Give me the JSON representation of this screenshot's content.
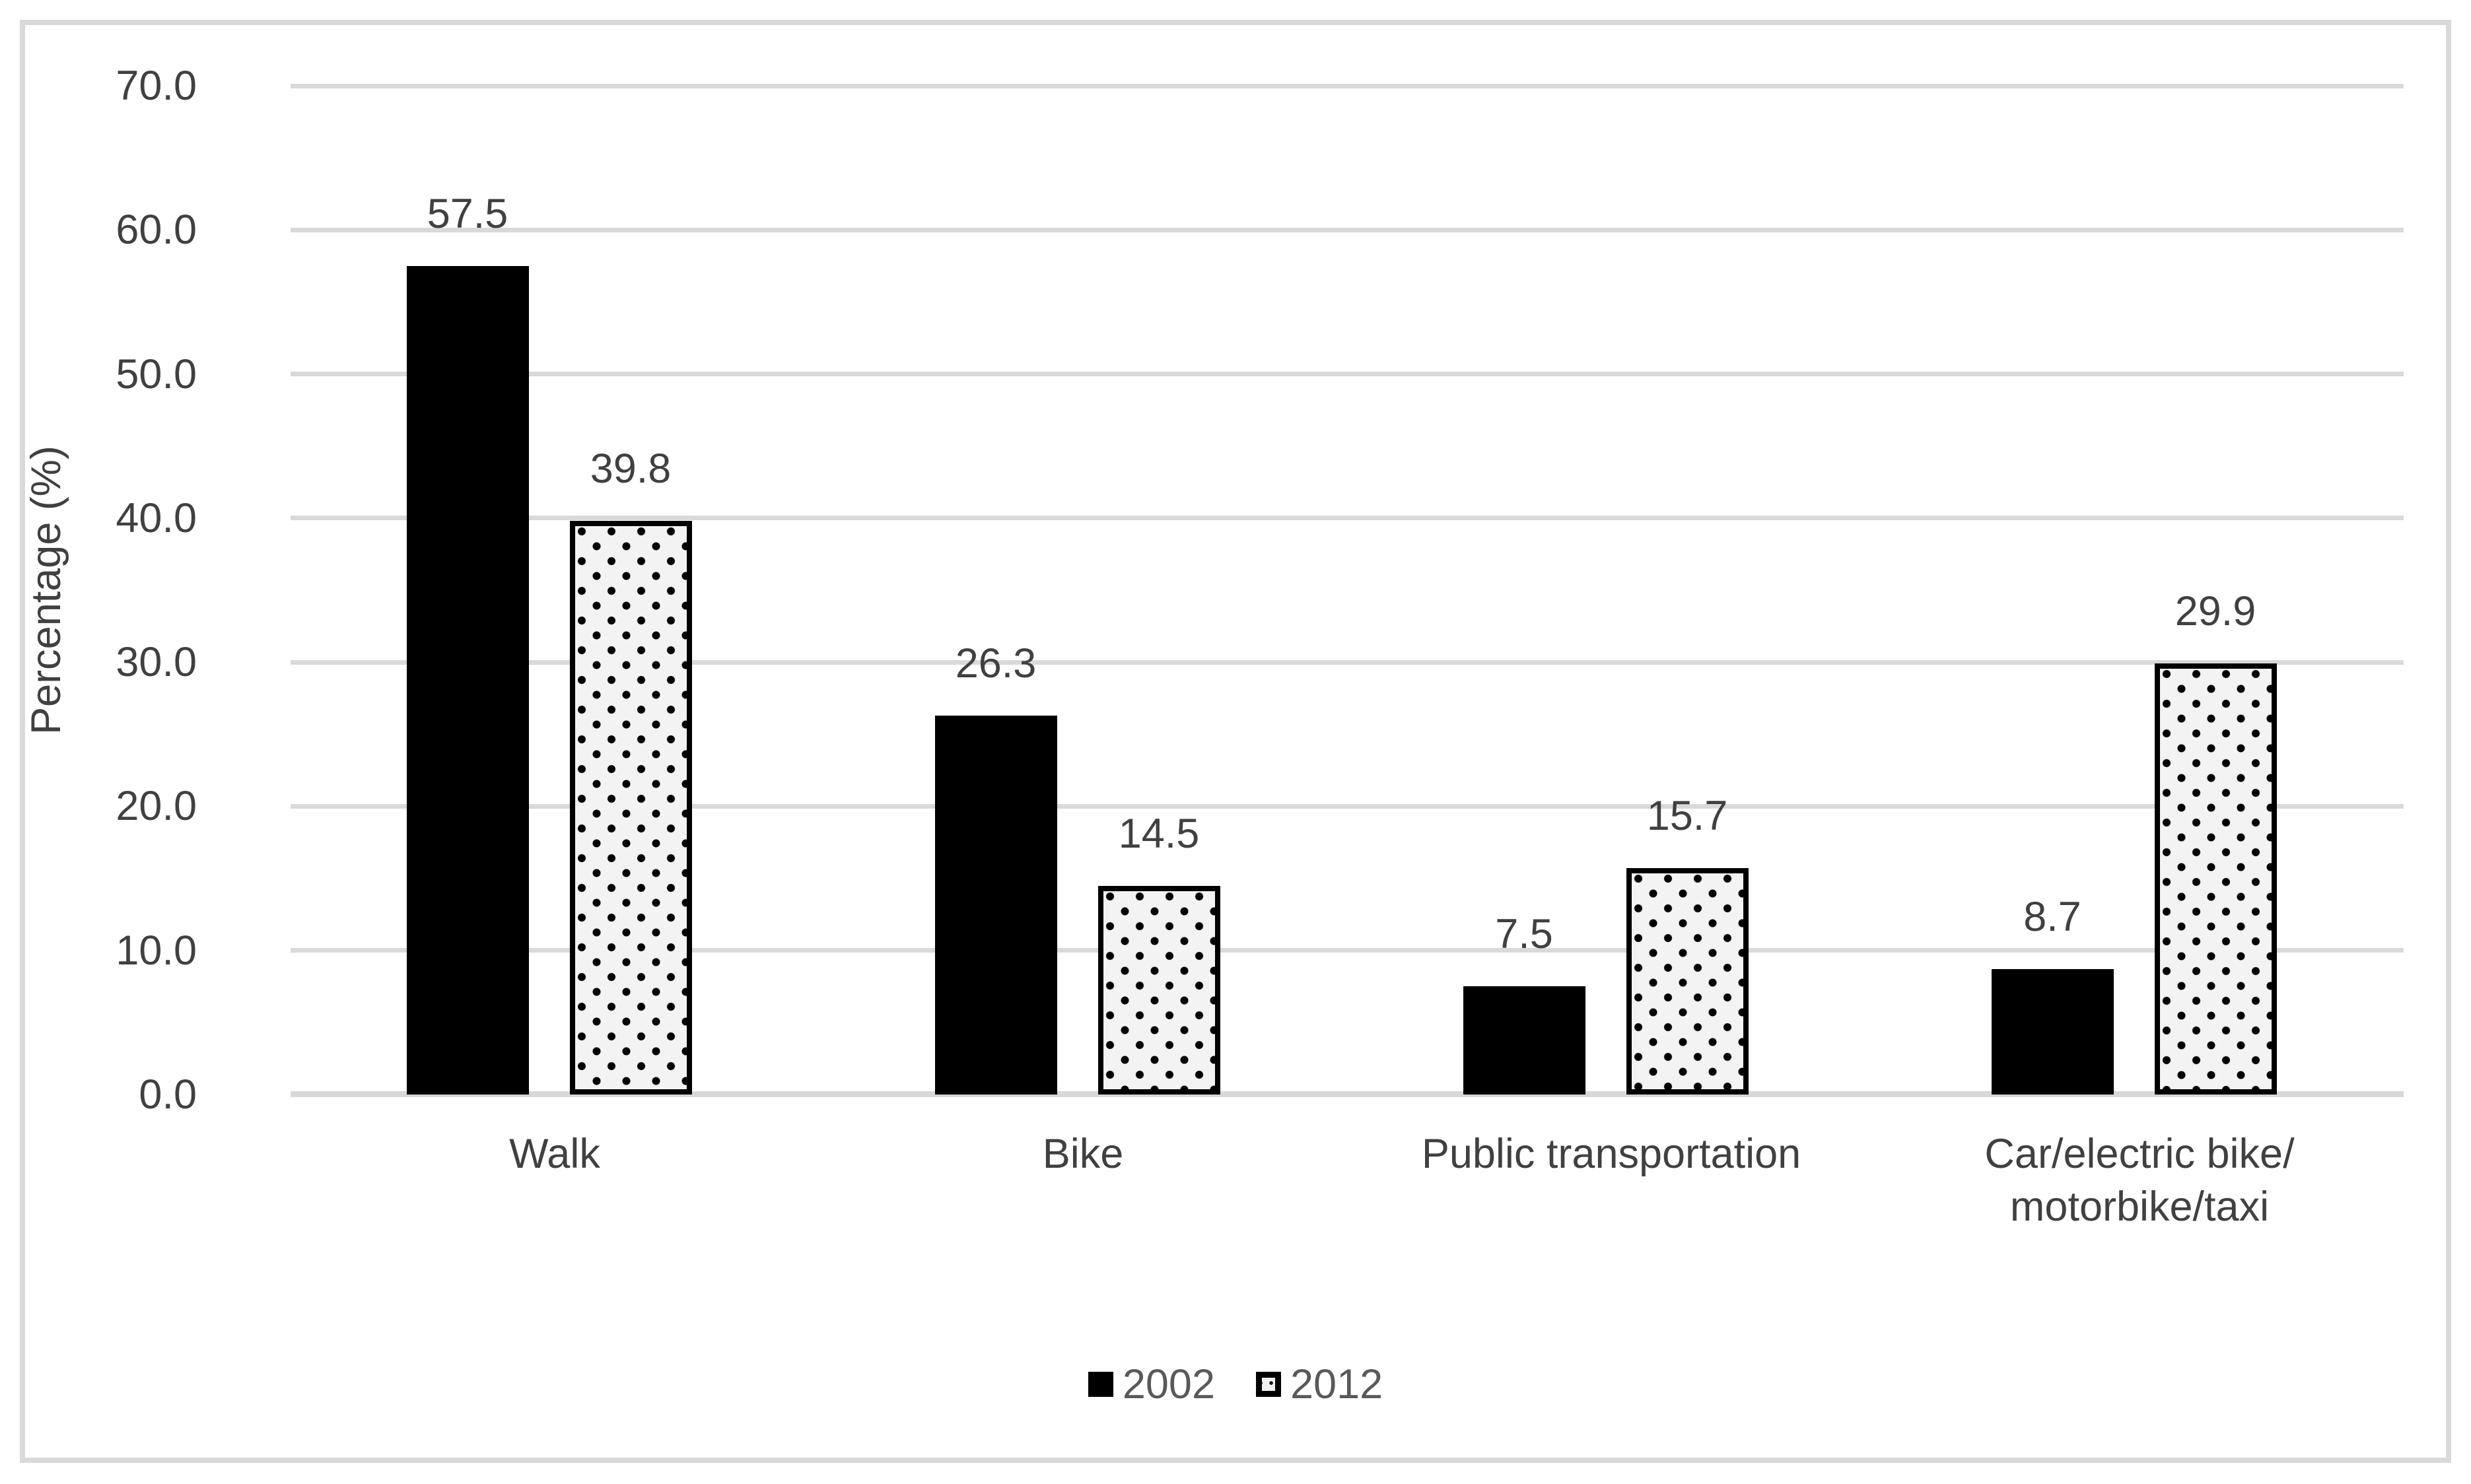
{
  "chart_data": {
    "type": "bar",
    "categories": [
      "Walk",
      "Bike",
      "Public transportation",
      "Car/electric bike/\nmotorbike/taxi"
    ],
    "series": [
      {
        "name": "2002",
        "style": "solid-black",
        "values": [
          57.5,
          26.3,
          7.5,
          8.7
        ]
      },
      {
        "name": "2012",
        "style": "dotted-pattern",
        "values": [
          39.8,
          14.5,
          15.7,
          29.9
        ]
      }
    ],
    "title": "",
    "xlabel": "",
    "ylabel": "Percentage (%)",
    "ylim": [
      0,
      70
    ],
    "ytick_step": 10,
    "yticks": [
      "0.0",
      "10.0",
      "20.0",
      "30.0",
      "40.0",
      "50.0",
      "60.0",
      "70.0"
    ],
    "value_labels": true,
    "value_label_format": "one_decimal",
    "grid": "horizontal",
    "legend_position": "bottom-center",
    "colors": {
      "series_2002_fill": "#000000",
      "series_2012_fill": "#f3f3f3",
      "series_2012_dots": "#000000",
      "series_2012_border": "#000000",
      "gridline": "#d9d9d9",
      "frame_border": "#d9d9d9",
      "text": "#404040"
    }
  }
}
